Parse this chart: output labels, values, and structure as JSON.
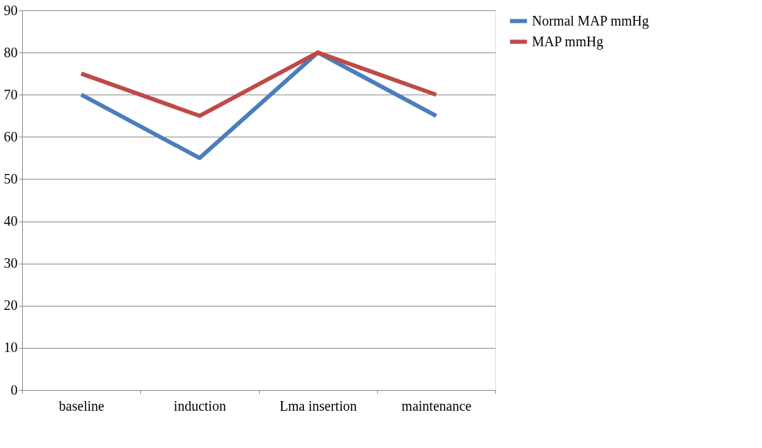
{
  "chart_data": {
    "type": "line",
    "categories": [
      "baseline",
      "induction",
      "Lma insertion",
      "maintenance"
    ],
    "series": [
      {
        "name": "Normal MAP mmHg",
        "color": "#4a7ebb",
        "values": [
          70,
          55,
          80,
          65
        ]
      },
      {
        "name": "MAP mmHg",
        "color": "#be4b48",
        "values": [
          75,
          65,
          80,
          70
        ]
      }
    ],
    "ylim": [
      0,
      90
    ],
    "yticks": [
      0,
      10,
      20,
      30,
      40,
      50,
      60,
      70,
      80,
      90
    ],
    "grid": "y",
    "legend": "right",
    "marker": "none",
    "line_style": "solid"
  }
}
